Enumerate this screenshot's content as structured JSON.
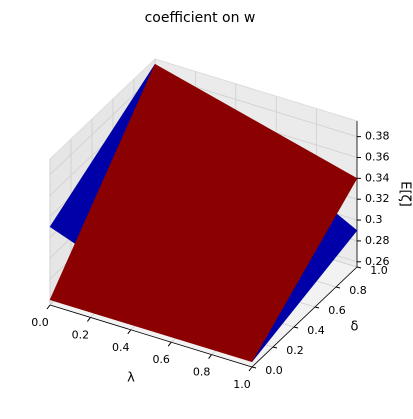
{
  "chart_data": {
    "type": "surface3d",
    "title": "coefficient on w",
    "xlabel": "λ",
    "ylabel": "δ",
    "zlabel": "E[ζ]",
    "x": [
      0,
      0.5,
      1
    ],
    "y": [
      0,
      0.5,
      1
    ],
    "xlim": [
      0,
      1
    ],
    "ylim": [
      0,
      1
    ],
    "zlim": [
      0.255,
      0.395
    ],
    "xticks": [
      {
        "value": 0,
        "label": "0.0"
      },
      0.2,
      0.4,
      0.6,
      0.8,
      {
        "value": 1,
        "label": "1.0"
      }
    ],
    "yticks": [
      {
        "value": 0,
        "label": "0.0"
      },
      0.2,
      0.4,
      0.6,
      0.8,
      {
        "value": 1,
        "label": "1.0"
      }
    ],
    "zticks": [
      0.26,
      0.28,
      0.3,
      0.32,
      0.34,
      0.36,
      0.38
    ],
    "grid": true,
    "series": [
      {
        "color": "#0000a8",
        "z": [
          [
            0.33,
            0.295,
            0.26
          ],
          [
            0.36,
            0.32,
            0.275
          ],
          [
            0.39,
            0.34,
            0.29
          ]
        ]
      },
      {
        "color": "#8b0000",
        "z": [
          [
            0.26,
            0.26,
            0.26
          ],
          [
            0.325,
            0.31,
            0.3
          ],
          [
            0.39,
            0.365,
            0.34
          ]
        ]
      }
    ]
  }
}
